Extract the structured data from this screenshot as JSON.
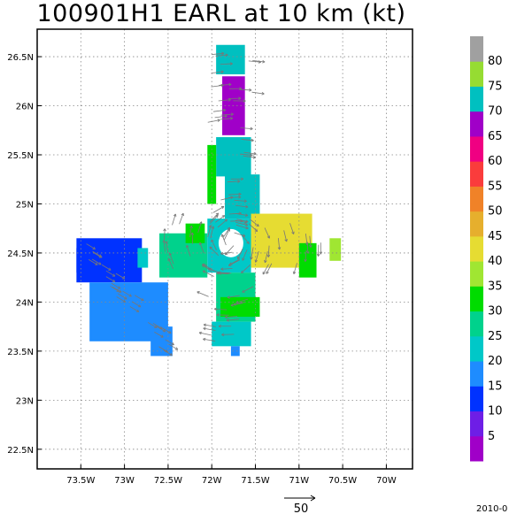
{
  "chart_data": {
    "type": "heatmap",
    "title": "100901H1 EARL at 10 km (kt)",
    "x_tick_labels": [
      "73.5W",
      "73W",
      "72.5W",
      "72W",
      "71.5W",
      "71W",
      "70.5W",
      "70W"
    ],
    "x_tick_values": [
      -73.5,
      -73.0,
      -72.5,
      -72.0,
      -71.5,
      -71.0,
      -70.5,
      -70.0
    ],
    "y_tick_labels": [
      "26.5N",
      "26N",
      "25.5N",
      "25N",
      "24.5N",
      "24N",
      "23.5N",
      "23N",
      "22.5N"
    ],
    "y_tick_values": [
      26.5,
      26.0,
      25.5,
      25.0,
      24.5,
      24.0,
      23.5,
      23.0,
      22.5
    ],
    "xlim": [
      -74.0,
      -69.7
    ],
    "ylim": [
      22.3,
      26.78
    ],
    "grid": true,
    "colorbar": {
      "levels": [
        0,
        5,
        10,
        15,
        20,
        25,
        30,
        35,
        40,
        45,
        50,
        55,
        60,
        65,
        70,
        75,
        80,
        85
      ],
      "labels": [
        "5",
        "10",
        "15",
        "20",
        "25",
        "30",
        "35",
        "40",
        "45",
        "50",
        "55",
        "60",
        "65",
        "70",
        "75",
        "80"
      ],
      "colors": [
        "#a000c8",
        "#6e1ee6",
        "#0032ff",
        "#1e8cff",
        "#00c8c8",
        "#00d28c",
        "#00dc00",
        "#a0e632",
        "#e6dc32",
        "#e6af2d",
        "#f08228",
        "#fa3c3c",
        "#f00082",
        "#a000c8",
        "#00c0c0",
        "#96dc32",
        "#a0a0a0"
      ]
    },
    "regions": [
      {
        "name": "north-tip",
        "value": 72,
        "cells": [
          [
            -71.95,
            26.62,
            -71.62,
            26.32
          ]
        ]
      },
      {
        "name": "north-band-a",
        "value": 68,
        "cells": [
          [
            -71.88,
            26.3,
            -71.62,
            25.7
          ]
        ]
      },
      {
        "name": "north-band-b",
        "value": 73,
        "cells": [
          [
            -71.95,
            25.68,
            -71.55,
            25.28
          ]
        ]
      },
      {
        "name": "north-band-c",
        "value": 72,
        "cells": [
          [
            -71.85,
            25.3,
            -71.45,
            24.85
          ]
        ]
      },
      {
        "name": "north-edge",
        "value": 30,
        "cells": [
          [
            -72.05,
            25.6,
            -71.95,
            25.0
          ]
        ]
      },
      {
        "name": "east-arm",
        "value": 40,
        "cells": [
          [
            -71.55,
            24.9,
            -70.85,
            24.35
          ]
        ]
      },
      {
        "name": "east-yellow",
        "value": 42,
        "cells": [
          [
            -71.65,
            24.7,
            -71.45,
            24.45
          ]
        ]
      },
      {
        "name": "east-tail",
        "value": 38,
        "cells": [
          [
            -70.65,
            24.65,
            -70.52,
            24.42
          ]
        ]
      },
      {
        "name": "east-green",
        "value": 31,
        "cells": [
          [
            -71.0,
            24.6,
            -70.8,
            24.25
          ]
        ]
      },
      {
        "name": "west-arm",
        "value": 28,
        "cells": [
          [
            -72.6,
            24.7,
            -72.05,
            24.25
          ]
        ]
      },
      {
        "name": "west-green",
        "value": 32,
        "cells": [
          [
            -72.3,
            24.8,
            -72.08,
            24.6
          ]
        ]
      },
      {
        "name": "eye-ring",
        "value": 22,
        "cells": [
          [
            -72.05,
            24.85,
            -71.55,
            24.3
          ]
        ]
      },
      {
        "name": "south-band",
        "value": 25,
        "cells": [
          [
            -71.95,
            24.3,
            -71.5,
            23.8
          ]
        ]
      },
      {
        "name": "south-green",
        "value": 32,
        "cells": [
          [
            -71.9,
            24.05,
            -71.45,
            23.85
          ]
        ]
      },
      {
        "name": "south-tail",
        "value": 20,
        "cells": [
          [
            -72.0,
            23.8,
            -71.55,
            23.55
          ]
        ]
      },
      {
        "name": "south-tip",
        "value": 18,
        "cells": [
          [
            -71.78,
            23.55,
            -71.68,
            23.45
          ]
        ]
      },
      {
        "name": "west-strip-core",
        "value": 14,
        "cells": [
          [
            -73.55,
            24.65,
            -72.8,
            24.2
          ]
        ]
      },
      {
        "name": "west-strip-diag",
        "value": 15,
        "cells": [
          [
            -73.4,
            24.2,
            -72.5,
            23.6
          ]
        ]
      },
      {
        "name": "west-strip-end",
        "value": 17,
        "cells": [
          [
            -72.7,
            23.75,
            -72.45,
            23.45
          ]
        ]
      },
      {
        "name": "west-strip-dark",
        "value": 10,
        "cells": [
          [
            -73.55,
            24.55,
            -73.42,
            24.3
          ]
        ]
      },
      {
        "name": "west-strip-edge",
        "value": 22,
        "cells": [
          [
            -72.85,
            24.55,
            -72.73,
            24.35
          ]
        ]
      }
    ],
    "vector_reference": {
      "label": "50",
      "value": 50
    }
  },
  "footer": {
    "date_fragment": "2010-0"
  }
}
